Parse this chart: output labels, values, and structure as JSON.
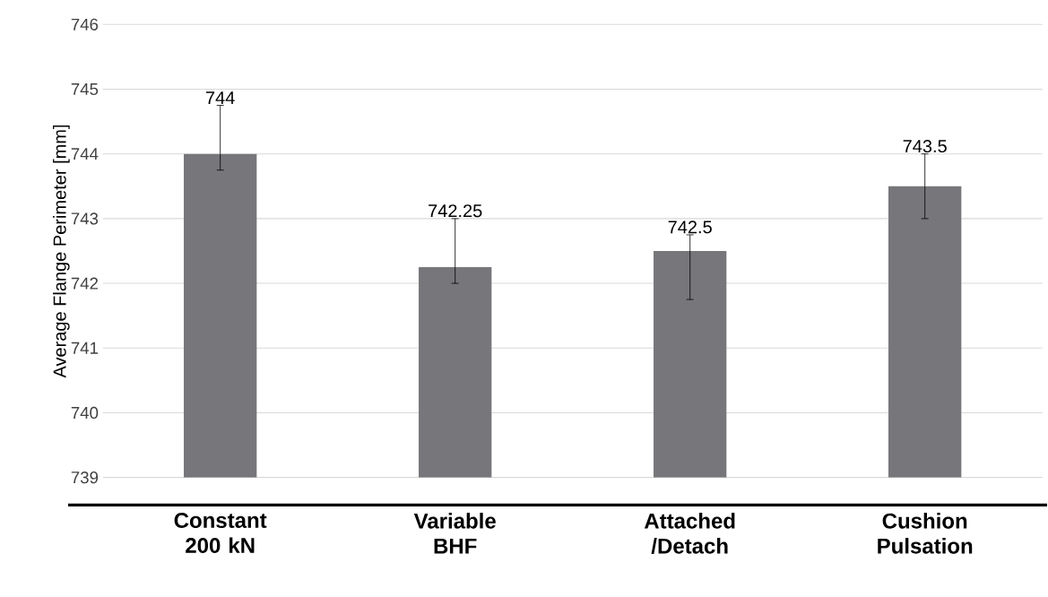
{
  "chart_data": {
    "type": "bar",
    "ylabel": "Average Flange Perimeter [mm]",
    "categories": [
      "Constant 200 kN",
      "Variable BHF",
      "Attached /Detach",
      "Cushion Pulsation"
    ],
    "values": [
      744,
      742.25,
      742.5,
      743.5
    ],
    "errors": [
      [
        743.75,
        744.75
      ],
      [
        742.0,
        743.0
      ],
      [
        741.75,
        742.75
      ],
      [
        743.0,
        744.0
      ]
    ],
    "color": "#77777b",
    "ylim": [
      739,
      746
    ],
    "yticks": [
      739,
      740,
      741,
      742,
      743,
      744,
      745,
      746
    ],
    "value_labels": [
      "744",
      "742.25",
      "742.5",
      "743.5"
    ],
    "grid": "y"
  }
}
